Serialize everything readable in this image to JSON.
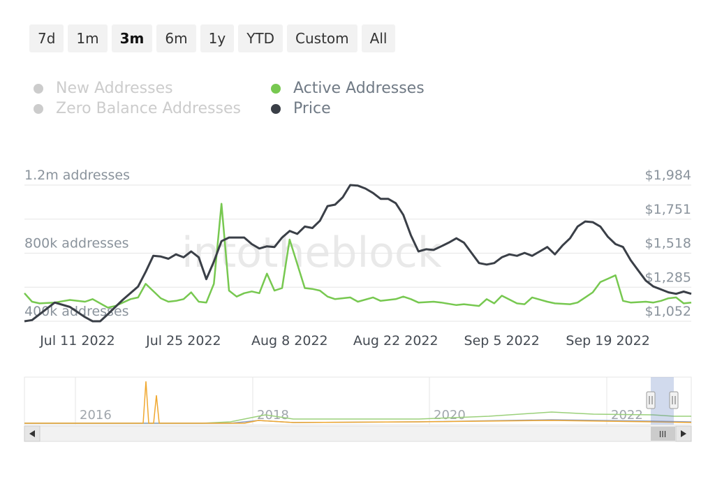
{
  "range_selector": {
    "buttons": [
      "7d",
      "1m",
      "3m",
      "6m",
      "1y",
      "YTD",
      "Custom",
      "All"
    ],
    "active": "3m"
  },
  "legend": [
    {
      "label": "New Addresses",
      "color": "#cccccc",
      "visible": false
    },
    {
      "label": "Zero Balance Addresses",
      "color": "#cccccc",
      "visible": false
    },
    {
      "label": "Active Addresses",
      "color": "#77c850",
      "visible": true
    },
    {
      "label": "Price",
      "color": "#3a3f47",
      "visible": true
    }
  ],
  "watermark": "intotheblock",
  "chart_data": {
    "type": "line",
    "title": "",
    "grid": true,
    "legend_position": "top",
    "x_axis": {
      "type": "date",
      "tick_labels": [
        "Jul 11 2022",
        "Jul 25 2022",
        "Aug 8 2022",
        "Aug 22 2022",
        "Sep 5 2022",
        "Sep 19 2022"
      ],
      "range": [
        "2022-07-04",
        "2022-09-30"
      ]
    },
    "y_axis_left": {
      "ticks": [
        400000,
        800000,
        1200000
      ],
      "tick_labels": [
        "400k addresses",
        "800k addresses",
        "1.2m addresses"
      ],
      "range": [
        400000,
        1200000
      ]
    },
    "y_axis_right": {
      "ticks": [
        1052,
        1285,
        1518,
        1751,
        1984
      ],
      "tick_labels": [
        "$1,052",
        "$1,285",
        "$1,518",
        "$1,751",
        "$1,984"
      ],
      "range": [
        1052,
        1984
      ]
    },
    "series": [
      {
        "name": "Active Addresses",
        "color": "#77c850",
        "axis": "left",
        "x": [
          "2022-07-04",
          "2022-07-05",
          "2022-07-06",
          "2022-07-08",
          "2022-07-10",
          "2022-07-12",
          "2022-07-13",
          "2022-07-15",
          "2022-07-16",
          "2022-07-18",
          "2022-07-19",
          "2022-07-20",
          "2022-07-22",
          "2022-07-23",
          "2022-07-24",
          "2022-07-25",
          "2022-07-26",
          "2022-07-27",
          "2022-07-28",
          "2022-07-29",
          "2022-07-30",
          "2022-07-31",
          "2022-08-01",
          "2022-08-02",
          "2022-08-03",
          "2022-08-04",
          "2022-08-05",
          "2022-08-06",
          "2022-08-07",
          "2022-08-08",
          "2022-08-10",
          "2022-08-11",
          "2022-08-12",
          "2022-08-13",
          "2022-08-14",
          "2022-08-16",
          "2022-08-17",
          "2022-08-19",
          "2022-08-20",
          "2022-08-22",
          "2022-08-23",
          "2022-08-24",
          "2022-08-25",
          "2022-08-27",
          "2022-08-28",
          "2022-08-30",
          "2022-08-31",
          "2022-09-02",
          "2022-09-03",
          "2022-09-04",
          "2022-09-05",
          "2022-09-07",
          "2022-09-08",
          "2022-09-09",
          "2022-09-11",
          "2022-09-12",
          "2022-09-14",
          "2022-09-15",
          "2022-09-16",
          "2022-09-17",
          "2022-09-18",
          "2022-09-19",
          "2022-09-20",
          "2022-09-21",
          "2022-09-22",
          "2022-09-24",
          "2022-09-25",
          "2022-09-26",
          "2022-09-27",
          "2022-09-28",
          "2022-09-29",
          "2022-09-30"
        ],
        "values": [
          565000,
          515000,
          505000,
          510000,
          525000,
          515000,
          530000,
          480000,
          490000,
          530000,
          540000,
          620000,
          535000,
          515000,
          520000,
          530000,
          570000,
          515000,
          510000,
          620000,
          1090000,
          580000,
          545000,
          565000,
          575000,
          565000,
          680000,
          580000,
          595000,
          880000,
          595000,
          590000,
          580000,
          545000,
          530000,
          540000,
          515000,
          540000,
          520000,
          530000,
          545000,
          530000,
          510000,
          515000,
          510000,
          495000,
          500000,
          490000,
          530000,
          505000,
          550000,
          505000,
          500000,
          540000,
          515000,
          505000,
          500000,
          510000,
          540000,
          570000,
          630000,
          650000,
          670000,
          520000,
          510000,
          515000,
          510000,
          520000,
          535000,
          540000,
          505000,
          510000
        ]
      },
      {
        "name": "Price",
        "color": "#3a3f47",
        "axis": "right",
        "x": [
          "2022-07-04",
          "2022-07-05",
          "2022-07-06",
          "2022-07-08",
          "2022-07-10",
          "2022-07-12",
          "2022-07-13",
          "2022-07-14",
          "2022-07-15",
          "2022-07-16",
          "2022-07-17",
          "2022-07-19",
          "2022-07-20",
          "2022-07-21",
          "2022-07-22",
          "2022-07-23",
          "2022-07-24",
          "2022-07-25",
          "2022-07-26",
          "2022-07-27",
          "2022-07-28",
          "2022-07-29",
          "2022-07-30",
          "2022-07-31",
          "2022-08-01",
          "2022-08-02",
          "2022-08-03",
          "2022-08-04",
          "2022-08-05",
          "2022-08-06",
          "2022-08-07",
          "2022-08-08",
          "2022-08-09",
          "2022-08-10",
          "2022-08-11",
          "2022-08-12",
          "2022-08-13",
          "2022-08-14",
          "2022-08-15",
          "2022-08-16",
          "2022-08-17",
          "2022-08-18",
          "2022-08-19",
          "2022-08-20",
          "2022-08-21",
          "2022-08-22",
          "2022-08-23",
          "2022-08-24",
          "2022-08-25",
          "2022-08-26",
          "2022-08-27",
          "2022-08-28",
          "2022-08-29",
          "2022-08-30",
          "2022-08-31",
          "2022-09-01",
          "2022-09-02",
          "2022-09-03",
          "2022-09-04",
          "2022-09-05",
          "2022-09-06",
          "2022-09-07",
          "2022-09-08",
          "2022-09-09",
          "2022-09-10",
          "2022-09-11",
          "2022-09-12",
          "2022-09-13",
          "2022-09-14",
          "2022-09-15",
          "2022-09-16",
          "2022-09-17",
          "2022-09-18",
          "2022-09-19",
          "2022-09-20",
          "2022-09-21",
          "2022-09-22",
          "2022-09-23",
          "2022-09-24",
          "2022-09-25",
          "2022-09-26",
          "2022-09-27",
          "2022-09-28",
          "2022-09-29",
          "2022-09-30"
        ],
        "values": [
          1052,
          1060,
          1100,
          1180,
          1150,
          1080,
          1052,
          1052,
          1100,
          1150,
          1200,
          1290,
          1390,
          1500,
          1495,
          1480,
          1510,
          1490,
          1530,
          1490,
          1340,
          1460,
          1600,
          1625,
          1625,
          1625,
          1580,
          1550,
          1565,
          1560,
          1625,
          1670,
          1650,
          1700,
          1690,
          1740,
          1840,
          1850,
          1900,
          1984,
          1980,
          1960,
          1930,
          1890,
          1890,
          1860,
          1780,
          1640,
          1530,
          1545,
          1540,
          1565,
          1590,
          1620,
          1590,
          1520,
          1450,
          1440,
          1450,
          1490,
          1510,
          1500,
          1520,
          1500,
          1530,
          1560,
          1510,
          1570,
          1620,
          1700,
          1735,
          1730,
          1700,
          1630,
          1580,
          1560,
          1470,
          1400,
          1330,
          1290,
          1270,
          1250,
          1240,
          1255,
          1240
        ]
      }
    ]
  },
  "navigator": {
    "year_labels": [
      "2016",
      "2018",
      "2020",
      "2022"
    ],
    "range_handles": 2,
    "scrollbar_grip": "III"
  }
}
